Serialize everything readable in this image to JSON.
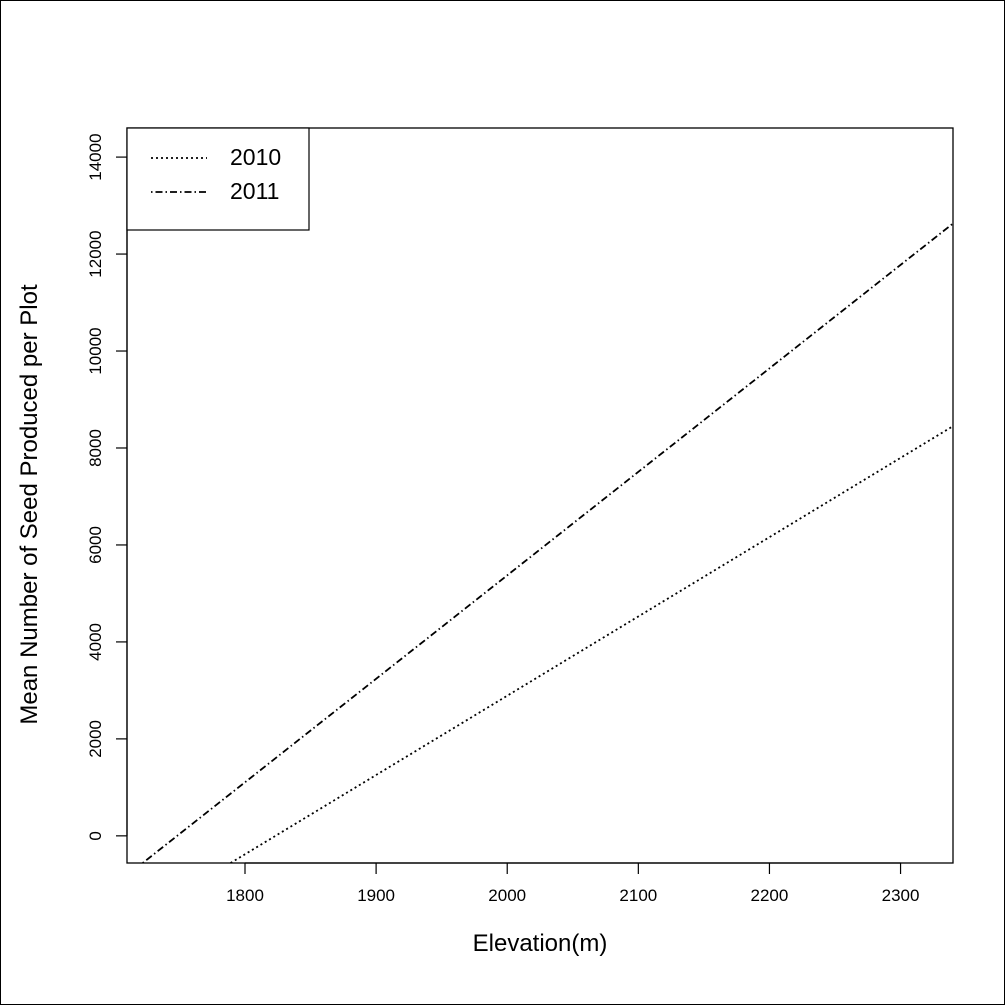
{
  "chart_data": {
    "type": "line",
    "title": "",
    "xlabel": "Elevation(m)",
    "ylabel": "Mean Number of Seed Produced per Plot",
    "xlim": [
      1710,
      2340
    ],
    "ylim": [
      -560,
      14600
    ],
    "x_ticks": [
      1800,
      1900,
      2000,
      2100,
      2200,
      2300
    ],
    "y_ticks": [
      0,
      2000,
      4000,
      6000,
      8000,
      10000,
      12000,
      14000
    ],
    "x_tick_labels": [
      "1800",
      "1900",
      "2000",
      "2100",
      "2200",
      "2300"
    ],
    "y_tick_labels": [
      "0",
      "2000",
      "4000",
      "6000",
      "8000",
      "10000",
      "12000",
      "14000"
    ],
    "grid": false,
    "legend_position": "top-left",
    "series": [
      {
        "name": "2010",
        "line_style": "dotted",
        "x": [
          1789,
          2340
        ],
        "y": [
          -560,
          8450
        ]
      },
      {
        "name": "2011",
        "line_style": "dotdash",
        "x": [
          1722,
          2340
        ],
        "y": [
          -560,
          12630
        ]
      }
    ]
  }
}
